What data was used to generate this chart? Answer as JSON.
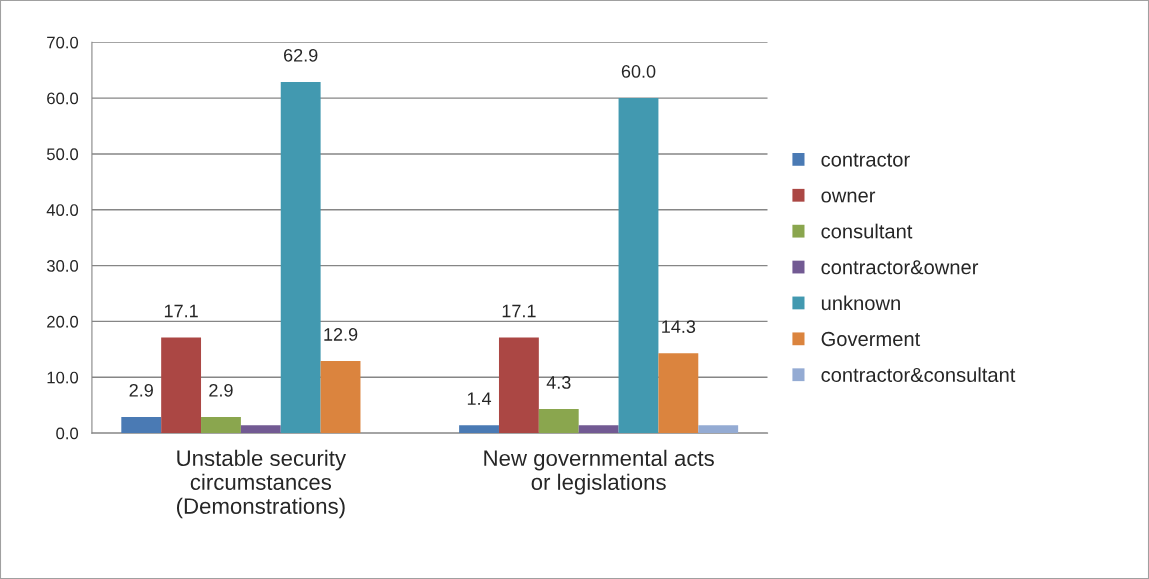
{
  "chart_data": {
    "type": "bar",
    "categories": [
      "Unstable security\ncircumstances\n(Demonstrations)",
      "New governmental acts\nor legislations"
    ],
    "series": [
      {
        "name": "contractor",
        "color": "#4a7ab4",
        "values": [
          2.9,
          1.4
        ],
        "value_labels": [
          "2.9",
          "1.4"
        ]
      },
      {
        "name": "owner",
        "color": "#ab4744",
        "values": [
          17.1,
          17.1
        ],
        "value_labels": [
          "17.1",
          "17.1"
        ]
      },
      {
        "name": "consultant",
        "color": "#8aa64e",
        "values": [
          2.9,
          4.3
        ],
        "value_labels": [
          "2.9",
          "4.3"
        ]
      },
      {
        "name": "contractor&owner",
        "color": "#725a93",
        "values": [
          1.4,
          1.4
        ],
        "value_labels": [
          null,
          null
        ]
      },
      {
        "name": "unknown",
        "color": "#4299b0",
        "values": [
          62.9,
          60.0
        ],
        "value_labels": [
          "62.9",
          "60.0"
        ]
      },
      {
        "name": "Goverment",
        "color": "#db843e",
        "values": [
          12.9,
          14.3
        ],
        "value_labels": [
          "12.9",
          "14.3"
        ]
      },
      {
        "name": "contractor&consultant",
        "color": "#94abd3",
        "values": [
          null,
          1.4
        ],
        "value_labels": [
          null,
          null
        ]
      }
    ],
    "ylim": [
      0,
      70
    ],
    "yticks": [
      {
        "value": 0,
        "label": "0.0"
      },
      {
        "value": 10,
        "label": "10.0"
      },
      {
        "value": 20,
        "label": "20.0"
      },
      {
        "value": 30,
        "label": "30.0"
      },
      {
        "value": 40,
        "label": "40.0"
      },
      {
        "value": 50,
        "label": "50.0"
      },
      {
        "value": 60,
        "label": "60.0"
      },
      {
        "value": 70,
        "label": "70.0"
      }
    ],
    "grid": "y",
    "legend": "right"
  }
}
